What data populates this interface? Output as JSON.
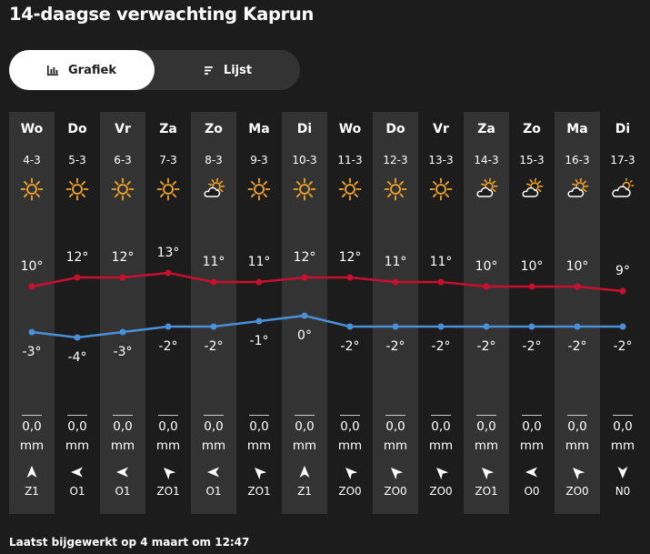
{
  "page": {
    "title": "14-daagse verwachting Kaprun",
    "footer": "Laatst bijgewerkt op 4 maart om 12:47"
  },
  "toggle": {
    "graph_label": "Grafiek",
    "list_label": "Lijst",
    "active": "graph"
  },
  "colors": {
    "max_line": "#c8102e",
    "min_line": "#4a90d9",
    "sun": "#f5a623",
    "column_alt": "#333333",
    "background": "#1c1c1c"
  },
  "days": [
    {
      "day": "Wo",
      "date": "4-3",
      "icon": "sun-icon",
      "max": "10°",
      "min": "-3°",
      "rain": "0,0",
      "unit": "mm",
      "wind_dir": "N",
      "wind": "Z1"
    },
    {
      "day": "Do",
      "date": "5-3",
      "icon": "sun-icon",
      "max": "12°",
      "min": "-4°",
      "rain": "0,0",
      "unit": "mm",
      "wind_dir": "E",
      "wind": "O1"
    },
    {
      "day": "Vr",
      "date": "6-3",
      "icon": "sun-icon",
      "max": "12°",
      "min": "-3°",
      "rain": "0,0",
      "unit": "mm",
      "wind_dir": "E",
      "wind": "O1"
    },
    {
      "day": "Za",
      "date": "7-3",
      "icon": "sun-icon",
      "max": "13°",
      "min": "-2°",
      "rain": "0,0",
      "unit": "mm",
      "wind_dir": "NW",
      "wind": "ZO1"
    },
    {
      "day": "Zo",
      "date": "8-3",
      "icon": "partly-cloudy-icon",
      "max": "11°",
      "min": "-2°",
      "rain": "0,0",
      "unit": "mm",
      "wind_dir": "E",
      "wind": "O1"
    },
    {
      "day": "Ma",
      "date": "9-3",
      "icon": "sun-icon",
      "max": "11°",
      "min": "-1°",
      "rain": "0,0",
      "unit": "mm",
      "wind_dir": "NW",
      "wind": "ZO1"
    },
    {
      "day": "Di",
      "date": "10-3",
      "icon": "sun-icon",
      "max": "12°",
      "min": "0°",
      "rain": "0,0",
      "unit": "mm",
      "wind_dir": "N",
      "wind": "Z1"
    },
    {
      "day": "Wo",
      "date": "11-3",
      "icon": "sun-icon",
      "max": "12°",
      "min": "-2°",
      "rain": "0,0",
      "unit": "mm",
      "wind_dir": "NW",
      "wind": "ZO0"
    },
    {
      "day": "Do",
      "date": "12-3",
      "icon": "sun-icon",
      "max": "11°",
      "min": "-2°",
      "rain": "0,0",
      "unit": "mm",
      "wind_dir": "NW",
      "wind": "ZO0"
    },
    {
      "day": "Vr",
      "date": "13-3",
      "icon": "sun-icon",
      "max": "11°",
      "min": "-2°",
      "rain": "0,0",
      "unit": "mm",
      "wind_dir": "NW",
      "wind": "ZO0"
    },
    {
      "day": "Za",
      "date": "14-3",
      "icon": "partly-cloudy-icon",
      "max": "10°",
      "min": "-2°",
      "rain": "0,0",
      "unit": "mm",
      "wind_dir": "NW",
      "wind": "ZO1"
    },
    {
      "day": "Zo",
      "date": "15-3",
      "icon": "partly-cloudy-icon",
      "max": "10°",
      "min": "-2°",
      "rain": "0,0",
      "unit": "mm",
      "wind_dir": "E",
      "wind": "O0"
    },
    {
      "day": "Ma",
      "date": "16-3",
      "icon": "partly-cloudy-icon",
      "max": "10°",
      "min": "-2°",
      "rain": "0,0",
      "unit": "mm",
      "wind_dir": "NW",
      "wind": "ZO0"
    },
    {
      "day": "Di",
      "date": "17-3",
      "icon": "cloudy-icon",
      "max": "9°",
      "min": "-2°",
      "rain": "0,0",
      "unit": "mm",
      "wind_dir": "S",
      "wind": "N0"
    }
  ],
  "chart_data": {
    "type": "line",
    "categories": [
      "4-3",
      "5-3",
      "6-3",
      "7-3",
      "8-3",
      "9-3",
      "10-3",
      "11-3",
      "12-3",
      "13-3",
      "14-3",
      "15-3",
      "16-3",
      "17-3"
    ],
    "series": [
      {
        "values": [
          10,
          12,
          12,
          13,
          11,
          11,
          12,
          12,
          11,
          11,
          10,
          10,
          10,
          9
        ]
      },
      {
        "values": [
          -3,
          -4,
          -3,
          -2,
          -2,
          -1,
          0,
          -2,
          -2,
          -2,
          -2,
          -2,
          -2,
          -2
        ]
      }
    ]
  }
}
